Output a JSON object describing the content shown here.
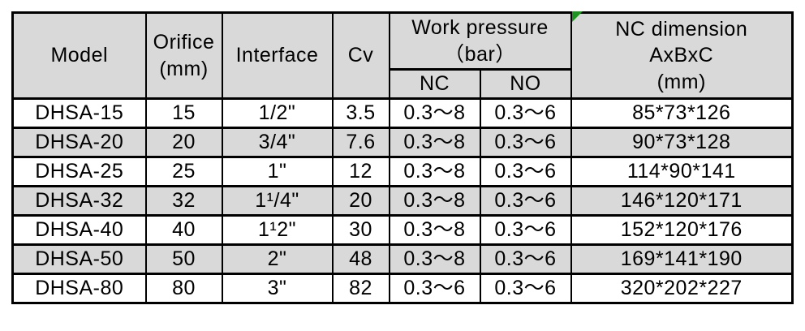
{
  "table": {
    "headers": {
      "model": "Model",
      "orifice_line1": "Orifice",
      "orifice_line2": "(mm)",
      "interface": "Interface",
      "cv": "Cv",
      "work_pressure_line1": "Work pressure",
      "work_pressure_line2": "（bar）",
      "nc": "NC",
      "no": "NO",
      "nc_dimension_line1": "NC dimension",
      "nc_dimension_line2": "AxBxC",
      "nc_dimension_line3": "(mm)"
    },
    "rows": [
      {
        "model": "DHSA-15",
        "orifice": "15",
        "interface": "1/2\"",
        "cv": "3.5",
        "nc": "0.3～8",
        "no": "0.3～6",
        "dimension": "85*73*126"
      },
      {
        "model": "DHSA-20",
        "orifice": "20",
        "interface": "3/4\"",
        "cv": "7.6",
        "nc": "0.3～8",
        "no": "0.3～6",
        "dimension": "90*73*128"
      },
      {
        "model": "DHSA-25",
        "orifice": "25",
        "interface": "1\"",
        "cv": "12",
        "nc": "0.3～8",
        "no": "0.3～6",
        "dimension": "114*90*141"
      },
      {
        "model": "DHSA-32",
        "orifice": "32",
        "interface": "1¹/4\"",
        "cv": "20",
        "nc": "0.3～8",
        "no": "0.3～6",
        "dimension": "146*120*171"
      },
      {
        "model": "DHSA-40",
        "orifice": "40",
        "interface": "1¹2\"",
        "cv": "30",
        "nc": "0.3～8",
        "no": "0.3～6",
        "dimension": "152*120*176"
      },
      {
        "model": "DHSA-50",
        "orifice": "50",
        "interface": "2\"",
        "cv": "48",
        "nc": "0.3～8",
        "no": "0.3～6",
        "dimension": "169*141*190"
      },
      {
        "model": "DHSA-80",
        "orifice": "80",
        "interface": "3\"",
        "cv": "82",
        "nc": "0.3～6",
        "no": "0.3～6",
        "dimension": "320*202*227"
      }
    ]
  },
  "colors": {
    "header_bg": "#d9d9d9",
    "alt_row_bg": "#d9d9d9",
    "row_bg": "#ffffff",
    "border": "#000000",
    "text": "#000000",
    "corner_flag_green": "#1f9321"
  },
  "icons": {
    "corner_flag": "green-corner-flag-icon"
  }
}
